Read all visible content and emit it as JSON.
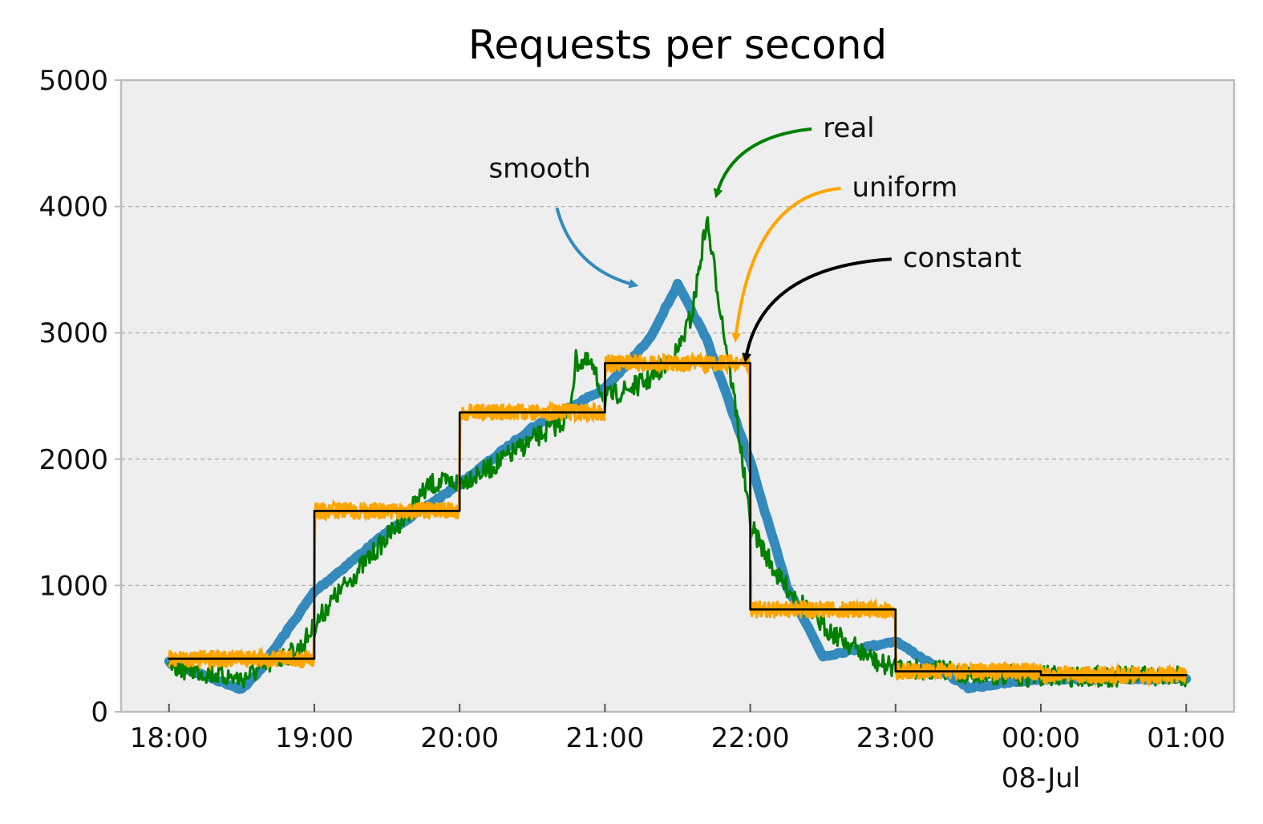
{
  "chart_data": {
    "type": "line",
    "title": "Requests per second",
    "xlabel": "",
    "ylabel": "",
    "ylim": [
      0,
      5000
    ],
    "yticks": [
      "0",
      "1000",
      "2000",
      "3000",
      "4000",
      "5000"
    ],
    "xlim_hours": [
      17.67,
      25.33
    ],
    "xticks": [
      {
        "hour": 18,
        "label": "18:00",
        "sublabel": ""
      },
      {
        "hour": 19,
        "label": "19:00",
        "sublabel": ""
      },
      {
        "hour": 20,
        "label": "20:00",
        "sublabel": ""
      },
      {
        "hour": 21,
        "label": "21:00",
        "sublabel": ""
      },
      {
        "hour": 22,
        "label": "22:00",
        "sublabel": ""
      },
      {
        "hour": 23,
        "label": "23:00",
        "sublabel": ""
      },
      {
        "hour": 24,
        "label": "00:00",
        "sublabel": "08-Jul"
      },
      {
        "hour": 25,
        "label": "01:00",
        "sublabel": ""
      }
    ],
    "grid": "y dashed",
    "background": "#eeeeee",
    "series": [
      {
        "name": "real",
        "color": "#008000",
        "points": [
          [
            18.0,
            360
          ],
          [
            18.5,
            260
          ],
          [
            18.9,
            500
          ],
          [
            19.1,
            850
          ],
          [
            19.5,
            1380
          ],
          [
            19.8,
            1800
          ],
          [
            20.0,
            1820
          ],
          [
            20.2,
            1920
          ],
          [
            20.5,
            2150
          ],
          [
            20.75,
            2330
          ],
          [
            20.8,
            2780
          ],
          [
            20.9,
            2750
          ],
          [
            21.0,
            2480
          ],
          [
            21.3,
            2620
          ],
          [
            21.5,
            2850
          ],
          [
            21.6,
            3150
          ],
          [
            21.7,
            3900
          ],
          [
            21.8,
            3150
          ],
          [
            21.9,
            2400
          ],
          [
            22.0,
            1480
          ],
          [
            22.2,
            1050
          ],
          [
            22.5,
            680
          ],
          [
            22.9,
            370
          ],
          [
            23.0,
            360
          ],
          [
            23.5,
            300
          ],
          [
            24.0,
            280
          ],
          [
            25.0,
            280
          ]
        ]
      },
      {
        "name": "smooth",
        "color": "#348abd",
        "points": [
          [
            18.0,
            390
          ],
          [
            18.5,
            180
          ],
          [
            18.6,
            290
          ],
          [
            19.0,
            950
          ],
          [
            19.5,
            1420
          ],
          [
            20.0,
            1800
          ],
          [
            20.5,
            2250
          ],
          [
            21.0,
            2560
          ],
          [
            21.3,
            2940
          ],
          [
            21.5,
            3380
          ],
          [
            21.7,
            2950
          ],
          [
            22.0,
            1980
          ],
          [
            22.25,
            1000
          ],
          [
            22.5,
            440
          ],
          [
            23.0,
            560
          ],
          [
            23.5,
            190
          ],
          [
            24.0,
            260
          ],
          [
            25.0,
            260
          ]
        ]
      },
      {
        "name": "uniform",
        "color": "#ffa500",
        "points": [
          [
            18.0,
            420
          ],
          [
            18.995,
            420
          ],
          [
            19.005,
            1590
          ],
          [
            19.995,
            1590
          ],
          [
            20.005,
            2370
          ],
          [
            20.995,
            2370
          ],
          [
            21.005,
            2760
          ],
          [
            21.995,
            2760
          ],
          [
            22.005,
            810
          ],
          [
            22.995,
            810
          ],
          [
            23.005,
            320
          ],
          [
            23.995,
            320
          ],
          [
            24.005,
            290
          ],
          [
            25.0,
            290
          ]
        ]
      },
      {
        "name": "constant",
        "color": "#000000",
        "points": [
          [
            18.0,
            420
          ],
          [
            19.0,
            420
          ],
          [
            19.0,
            1590
          ],
          [
            20.0,
            1590
          ],
          [
            20.0,
            2370
          ],
          [
            21.0,
            2370
          ],
          [
            21.0,
            2760
          ],
          [
            22.0,
            2760
          ],
          [
            22.0,
            810
          ],
          [
            23.0,
            810
          ],
          [
            23.0,
            320
          ],
          [
            24.0,
            320
          ],
          [
            24.0,
            290
          ],
          [
            25.0,
            290
          ]
        ]
      }
    ],
    "annotations": [
      {
        "text": "real",
        "color": "#008000",
        "label_at": [
          22.5,
          4550
        ],
        "arrow_to": [
          21.77,
          4100
        ]
      },
      {
        "text": "smooth",
        "color": "#348abd",
        "label_at": [
          20.2,
          4230
        ],
        "arrow_to": [
          21.2,
          3380
        ]
      },
      {
        "text": "uniform",
        "color": "#ffa500",
        "label_at": [
          22.7,
          4080
        ],
        "arrow_to": [
          21.9,
          2960
        ]
      },
      {
        "text": "constant",
        "color": "#000000",
        "label_at": [
          23.05,
          3520
        ],
        "arrow_to": [
          21.97,
          2800
        ]
      }
    ]
  }
}
